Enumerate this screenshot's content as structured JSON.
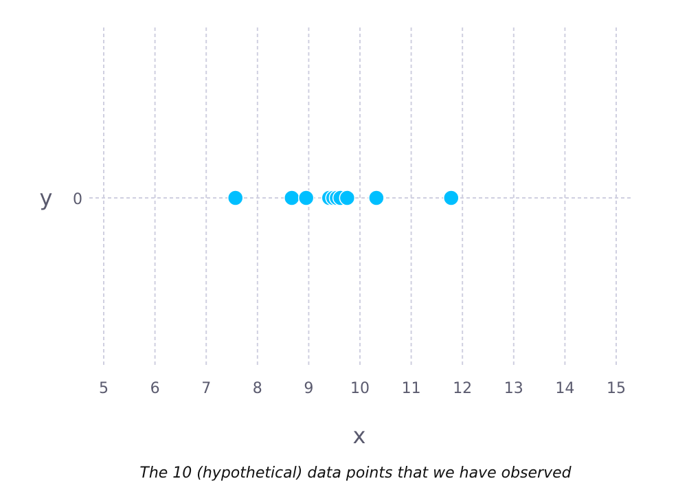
{
  "chart_data": {
    "type": "scatter",
    "title": "",
    "xlabel": "x",
    "ylabel": "y",
    "xlim": [
      5,
      15
    ],
    "x_ticks": [
      "5",
      "6",
      "7",
      "8",
      "9",
      "10",
      "11",
      "12",
      "13",
      "14",
      "15"
    ],
    "y_ticks": [
      "0"
    ],
    "grid": true,
    "series": [
      {
        "x": [
          7.57,
          8.67,
          8.95,
          9.4,
          9.48,
          9.55,
          9.62,
          9.75,
          10.32,
          11.78
        ],
        "y": [
          0,
          0,
          0,
          0,
          0,
          0,
          0,
          0,
          0,
          0
        ]
      }
    ],
    "point_color": "#00bfff",
    "grid_color": "#cfcfe0",
    "text_color": "#5a5a6e"
  },
  "caption": "The 10 (hypothetical) data points that we have observed"
}
